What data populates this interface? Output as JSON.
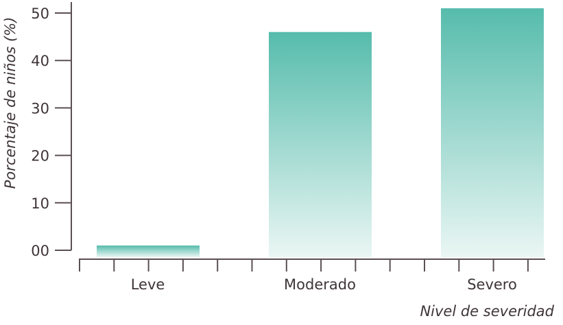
{
  "chart_data": {
    "type": "bar",
    "categories": [
      "Leve",
      "Moderado",
      "Severo"
    ],
    "values": [
      1,
      46,
      51
    ],
    "xlabel": "Nivel de severidad",
    "ylabel": "Porcentaje de niños (%)",
    "ylim": [
      0,
      50
    ],
    "yticks": [
      0,
      10,
      20,
      30,
      40,
      50
    ],
    "ytick_labels": [
      "00",
      "10",
      "20",
      "30",
      "40",
      "50"
    ],
    "grid": false,
    "colors": {
      "bar_top": "#56bcac",
      "bar_bottom": "#eaf6f4",
      "axis": "#5a4f53",
      "text": "#3e3438"
    }
  }
}
